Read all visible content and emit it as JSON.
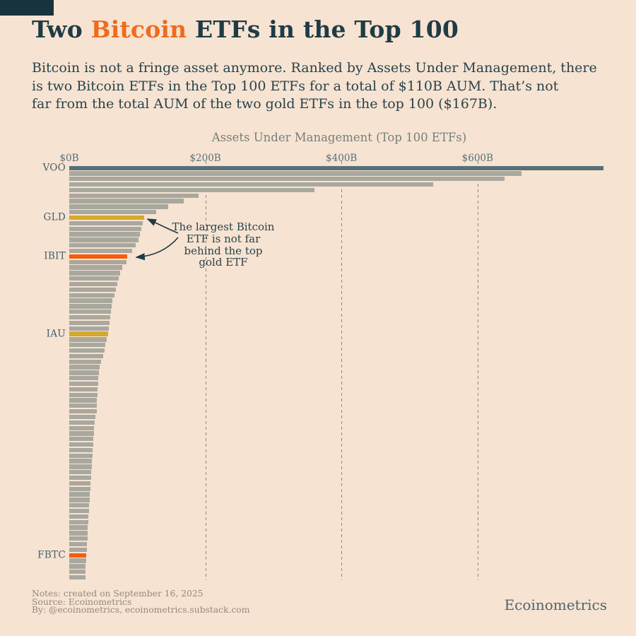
{
  "header": {
    "title_pre": "Two ",
    "title_highlight": "Bitcoin",
    "title_post": " ETFs in the Top 100",
    "subtitle": "Bitcoin is not a fringe asset anymore. Ranked by Assets Under Management, there\nis two Bitcoin ETFs in the Top 100 ETFs for a total of $110B AUM. That’s not\nfar from the total AUM of the two gold ETFs in the top 100 ($167B)."
  },
  "chart_data": {
    "type": "bar",
    "orientation": "horizontal",
    "title": "Assets Under Management (Top 100 ETFs)",
    "unit": "billions USD",
    "xlim": [
      0,
      800
    ],
    "grid": "dashed-vertical",
    "x_ticks": [
      {
        "value": 0,
        "label": "$0B"
      },
      {
        "value": 200,
        "label": "$200B"
      },
      {
        "value": 400,
        "label": "$400B"
      },
      {
        "value": 600,
        "label": "$600B"
      }
    ],
    "values": [
      785,
      665,
      640,
      535,
      360,
      190,
      168,
      145,
      128,
      110,
      108,
      106,
      104,
      102,
      98,
      92,
      85,
      84,
      78,
      75,
      73,
      71,
      69,
      66,
      63,
      62,
      61,
      60,
      59,
      58,
      57,
      55,
      53,
      52,
      50,
      47,
      44.5,
      43.5,
      43,
      42.5,
      42,
      41.5,
      41,
      40.5,
      40,
      38.5,
      37.5,
      36.5,
      36,
      35.5,
      35,
      34.5,
      34,
      33.5,
      33,
      32.5,
      32,
      31.5,
      31,
      30.5,
      30,
      29.5,
      29,
      28.5,
      28,
      27.5,
      27,
      26.5,
      26,
      25.5,
      25,
      24.5,
      24.2,
      23.8,
      23.5
    ],
    "labeled_bars": [
      {
        "index": 0,
        "label": "VOO",
        "color_key": "slate"
      },
      {
        "index": 9,
        "label": "GLD",
        "color_key": "gold"
      },
      {
        "index": 16,
        "label": "IBIT",
        "color_key": "orange"
      },
      {
        "index": 30,
        "label": "IAU",
        "color_key": "gold"
      },
      {
        "index": 70,
        "label": "FBTC",
        "color_key": "orange"
      }
    ],
    "annotation": {
      "text": "The largest Bitcoin\nETF is not far\nbehind the top\ngold ETF"
    }
  },
  "colors": {
    "background": "#f7e3d2",
    "bar_default": "#a9a89e",
    "bar_slate": "#567078",
    "bar_gold": "#d4a92c",
    "bar_orange": "#f45d0d",
    "title_dark": "#1f3b45",
    "title_orange": "#ee6c1e",
    "gridline": "#8a877a"
  },
  "footer": {
    "notes": "Notes: created on September 16, 2025\nSource: Ecoinometrics\nBy: @ecoinometrics, ecoinometrics.substack.com",
    "brand": "Ecoinometrics"
  }
}
